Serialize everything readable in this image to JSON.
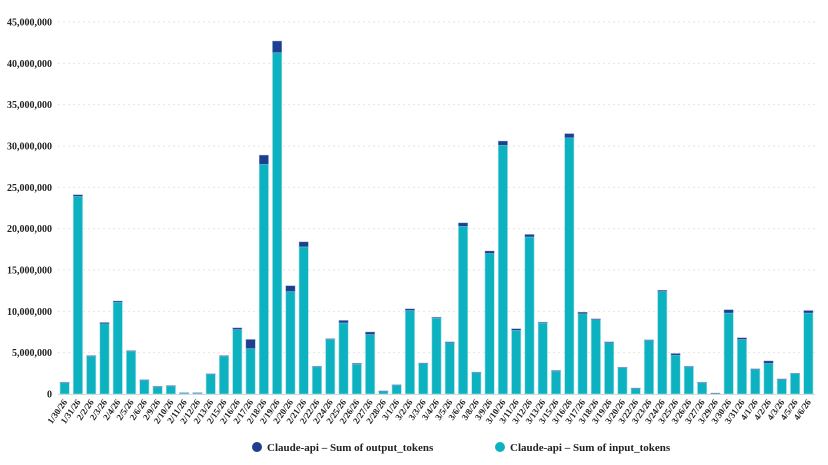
{
  "chart_data": {
    "type": "bar",
    "stacked": true,
    "title": "",
    "xlabel": "",
    "ylabel": "",
    "ylim": [
      0,
      45000000
    ],
    "yticks": [
      0,
      5000000,
      10000000,
      15000000,
      20000000,
      25000000,
      30000000,
      35000000,
      40000000,
      45000000
    ],
    "ytick_labels": [
      "0",
      "5,000,000",
      "10,000,000",
      "15,000,000",
      "20,000,000",
      "25,000,000",
      "30,000,000",
      "35,000,000",
      "40,000,000",
      "45,000,000"
    ],
    "grid": true,
    "legend_position": "bottom",
    "categories": [
      "1/30/26",
      "1/31/26",
      "2/2/26",
      "2/3/26",
      "2/4/26",
      "2/5/26",
      "2/6/26",
      "2/9/26",
      "2/10/26",
      "2/11/26",
      "2/12/26",
      "2/13/26",
      "2/15/26",
      "2/16/26",
      "2/17/26",
      "2/18/26",
      "2/19/26",
      "2/20/26",
      "2/21/26",
      "2/22/26",
      "2/24/26",
      "2/25/26",
      "2/26/26",
      "2/27/26",
      "2/28/26",
      "3/1/26",
      "3/2/26",
      "3/3/26",
      "3/4/26",
      "3/5/26",
      "3/6/26",
      "3/8/26",
      "3/9/26",
      "3/10/26",
      "3/11/26",
      "3/12/26",
      "3/13/26",
      "3/15/26",
      "3/16/26",
      "3/17/26",
      "3/18/26",
      "3/19/26",
      "3/20/26",
      "3/22/26",
      "3/23/26",
      "3/24/26",
      "3/25/26",
      "3/26/26",
      "3/27/26",
      "3/29/26",
      "3/30/26",
      "3/31/26",
      "4/1/26",
      "4/2/26",
      "4/3/26",
      "4/5/26",
      "4/6/26"
    ],
    "series": [
      {
        "name": "Claude-api – Sum of input_tokens",
        "color": "#0db2c0",
        "values": [
          1400000,
          23900000,
          4600000,
          8500000,
          11100000,
          5200000,
          1700000,
          900000,
          1000000,
          150000,
          150000,
          2400000,
          4600000,
          7800000,
          5500000,
          27800000,
          41300000,
          12400000,
          17800000,
          3300000,
          6600000,
          8600000,
          3600000,
          7200000,
          350000,
          1100000,
          10100000,
          3700000,
          9200000,
          6200000,
          20300000,
          2600000,
          17000000,
          30100000,
          7700000,
          19000000,
          8600000,
          2800000,
          31000000,
          9700000,
          9000000,
          6200000,
          3200000,
          700000,
          6500000,
          12400000,
          4700000,
          3300000,
          1400000,
          100000,
          9800000,
          6600000,
          3000000,
          3700000,
          1800000,
          2500000,
          9800000
        ]
      },
      {
        "name": "Claude-api – Sum of output_tokens",
        "color": "#1d3f8f",
        "values": [
          20000,
          200000,
          50000,
          150000,
          150000,
          50000,
          20000,
          20000,
          20000,
          10000,
          10000,
          50000,
          50000,
          200000,
          1100000,
          1100000,
          1400000,
          700000,
          600000,
          50000,
          100000,
          300000,
          100000,
          300000,
          20000,
          20000,
          200000,
          50000,
          100000,
          100000,
          400000,
          50000,
          300000,
          500000,
          200000,
          300000,
          100000,
          50000,
          500000,
          200000,
          100000,
          100000,
          50000,
          20000,
          50000,
          150000,
          200000,
          50000,
          20000,
          10000,
          400000,
          200000,
          50000,
          300000,
          20000,
          20000,
          300000
        ]
      }
    ],
    "legend": [
      {
        "label": "Claude-api – Sum of output_tokens",
        "color": "#1d3f8f"
      },
      {
        "label": "Claude-api – Sum of input_tokens",
        "color": "#0db2c0"
      }
    ]
  }
}
